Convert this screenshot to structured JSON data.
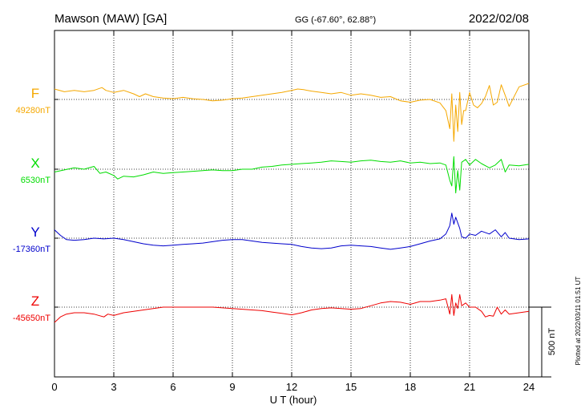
{
  "header": {
    "station": "Mawson (MAW)  [GA]",
    "coords": "GG (-67.60°,  62.88°)",
    "date": "2022/02/08"
  },
  "plotted_note": "Plotted at 2022/03/11 01:51  UT",
  "scale_label": "500 nT",
  "chart_data": {
    "type": "line",
    "title": "",
    "xlabel": "U T (hour)",
    "ylabel": "",
    "xlim": [
      0,
      24
    ],
    "xticks": [
      "0",
      "3",
      "6",
      "9",
      "12",
      "15",
      "18",
      "21",
      "24"
    ],
    "grid": true,
    "scale_bar_nT": 500,
    "colors": {
      "F": "#f5a800",
      "X": "#00dd00",
      "Y": "#0000cc",
      "Z": "#ee0000"
    },
    "series": [
      {
        "name": "F",
        "baseline_label": "49280nT",
        "baseline": 49280,
        "x": [
          0,
          0.5,
          1,
          1.5,
          2,
          2.4,
          2.6,
          3,
          3.5,
          4,
          4.3,
          4.6,
          5,
          5.5,
          6,
          6.5,
          7,
          7.5,
          8,
          8.5,
          9,
          9.5,
          10,
          10.5,
          11,
          11.5,
          12,
          12.3,
          12.6,
          13,
          13.5,
          14,
          14.5,
          15,
          15.5,
          16,
          16.5,
          17,
          17.5,
          18,
          18.5,
          19,
          19.5,
          19.8,
          20,
          20.1,
          20.2,
          20.3,
          20.4,
          20.5,
          20.6,
          20.7,
          20.8,
          21,
          21.2,
          21.4,
          21.6,
          21.8,
          22,
          22.2,
          22.4,
          22.6,
          22.8,
          23,
          23.5,
          24
        ],
        "values": [
          49355,
          49335,
          49345,
          49335,
          49345,
          49365,
          49345,
          49330,
          49345,
          49320,
          49300,
          49320,
          49300,
          49290,
          49285,
          49295,
          49285,
          49280,
          49270,
          49275,
          49285,
          49290,
          49300,
          49310,
          49320,
          49330,
          49345,
          49355,
          49350,
          49340,
          49330,
          49320,
          49330,
          49310,
          49320,
          49310,
          49295,
          49300,
          49270,
          49260,
          49275,
          49280,
          49255,
          49200,
          49070,
          49320,
          48980,
          49240,
          49050,
          49330,
          49100,
          49200,
          49200,
          49330,
          49240,
          49220,
          49250,
          49300,
          49380,
          49240,
          49260,
          49385,
          49310,
          49230,
          49370,
          49395
        ]
      },
      {
        "name": "X",
        "baseline_label": "6530nT",
        "baseline": 6530,
        "x": [
          0,
          0.5,
          1,
          1.5,
          2,
          2.3,
          2.6,
          3,
          3.2,
          3.5,
          4,
          4.5,
          5,
          5.5,
          6,
          6.5,
          7,
          7.5,
          8,
          8.5,
          9,
          9.5,
          10,
          10.5,
          11,
          11.5,
          12,
          12.5,
          13,
          13.5,
          14,
          14.5,
          15,
          15.5,
          16,
          16.5,
          17,
          17.5,
          18,
          18.5,
          19,
          19.5,
          19.8,
          20,
          20.1,
          20.2,
          20.3,
          20.4,
          20.5,
          20.6,
          20.8,
          21,
          21.3,
          21.6,
          22,
          22.3,
          22.6,
          22.8,
          23,
          23.5,
          24
        ],
        "values": [
          6510,
          6525,
          6540,
          6530,
          6550,
          6500,
          6510,
          6485,
          6460,
          6480,
          6475,
          6490,
          6510,
          6500,
          6505,
          6510,
          6515,
          6520,
          6525,
          6520,
          6520,
          6530,
          6530,
          6545,
          6550,
          6560,
          6565,
          6570,
          6575,
          6580,
          6590,
          6585,
          6580,
          6590,
          6595,
          6585,
          6580,
          6590,
          6575,
          6580,
          6570,
          6575,
          6560,
          6450,
          6410,
          6620,
          6360,
          6520,
          6380,
          6580,
          6600,
          6560,
          6600,
          6570,
          6540,
          6560,
          6600,
          6510,
          6560,
          6555,
          6565
        ]
      },
      {
        "name": "Y",
        "baseline_label": "-17360nT",
        "baseline": -17360,
        "x": [
          0,
          0.3,
          0.6,
          1,
          1.5,
          2,
          2.5,
          3,
          3.5,
          4,
          4.5,
          5,
          5.5,
          6,
          6.5,
          7,
          7.5,
          8,
          8.5,
          9,
          9.5,
          10,
          10.5,
          11,
          11.5,
          12,
          12.5,
          13,
          13.5,
          14,
          14.5,
          15,
          15.5,
          16,
          16.5,
          17,
          17.5,
          18,
          18.5,
          19,
          19.5,
          19.8,
          20,
          20.1,
          20.2,
          20.3,
          20.4,
          20.5,
          20.6,
          20.8,
          21,
          21.3,
          21.6,
          22,
          22.3,
          22.6,
          22.8,
          23,
          23.5,
          24
        ],
        "values": [
          -17300,
          -17340,
          -17370,
          -17375,
          -17370,
          -17360,
          -17365,
          -17360,
          -17370,
          -17385,
          -17400,
          -17410,
          -17415,
          -17410,
          -17405,
          -17400,
          -17395,
          -17385,
          -17375,
          -17370,
          -17370,
          -17380,
          -17390,
          -17395,
          -17400,
          -17405,
          -17420,
          -17430,
          -17435,
          -17430,
          -17415,
          -17410,
          -17415,
          -17420,
          -17430,
          -17440,
          -17430,
          -17420,
          -17400,
          -17380,
          -17365,
          -17330,
          -17270,
          -17180,
          -17260,
          -17210,
          -17250,
          -17290,
          -17350,
          -17360,
          -17330,
          -17340,
          -17310,
          -17330,
          -17300,
          -17350,
          -17320,
          -17360,
          -17370,
          -17365
        ]
      },
      {
        "name": "Z",
        "baseline_label": "-45650nT",
        "baseline": -45650,
        "x": [
          0,
          0.3,
          0.6,
          1,
          1.5,
          2,
          2.5,
          2.7,
          3,
          3.5,
          4,
          4.5,
          5,
          5.5,
          6,
          6.5,
          7,
          7.5,
          8,
          8.5,
          9,
          9.5,
          10,
          10.5,
          11,
          11.5,
          12,
          12.5,
          13,
          13.5,
          14,
          14.5,
          15,
          15.5,
          16,
          16.5,
          17,
          17.5,
          18,
          18.5,
          19,
          19.5,
          19.8,
          20,
          20.1,
          20.2,
          20.3,
          20.4,
          20.5,
          20.6,
          20.8,
          21,
          21.3,
          21.6,
          21.8,
          22,
          22.2,
          22.4,
          22.6,
          22.8,
          23,
          23.5,
          24
        ],
        "values": [
          -45760,
          -45720,
          -45700,
          -45690,
          -45690,
          -45700,
          -45720,
          -45700,
          -45710,
          -45690,
          -45680,
          -45670,
          -45660,
          -45650,
          -45650,
          -45650,
          -45650,
          -45650,
          -45650,
          -45655,
          -45660,
          -45665,
          -45670,
          -45675,
          -45685,
          -45695,
          -45705,
          -45690,
          -45670,
          -45660,
          -45655,
          -45660,
          -45665,
          -45660,
          -45640,
          -45620,
          -45610,
          -45615,
          -45630,
          -45610,
          -45610,
          -45600,
          -45590,
          -45700,
          -45560,
          -45710,
          -45620,
          -45660,
          -45560,
          -45640,
          -45620,
          -45650,
          -45650,
          -45680,
          -45720,
          -45710,
          -45715,
          -45650,
          -45700,
          -45670,
          -45700,
          -45690,
          -45680
        ]
      }
    ]
  }
}
